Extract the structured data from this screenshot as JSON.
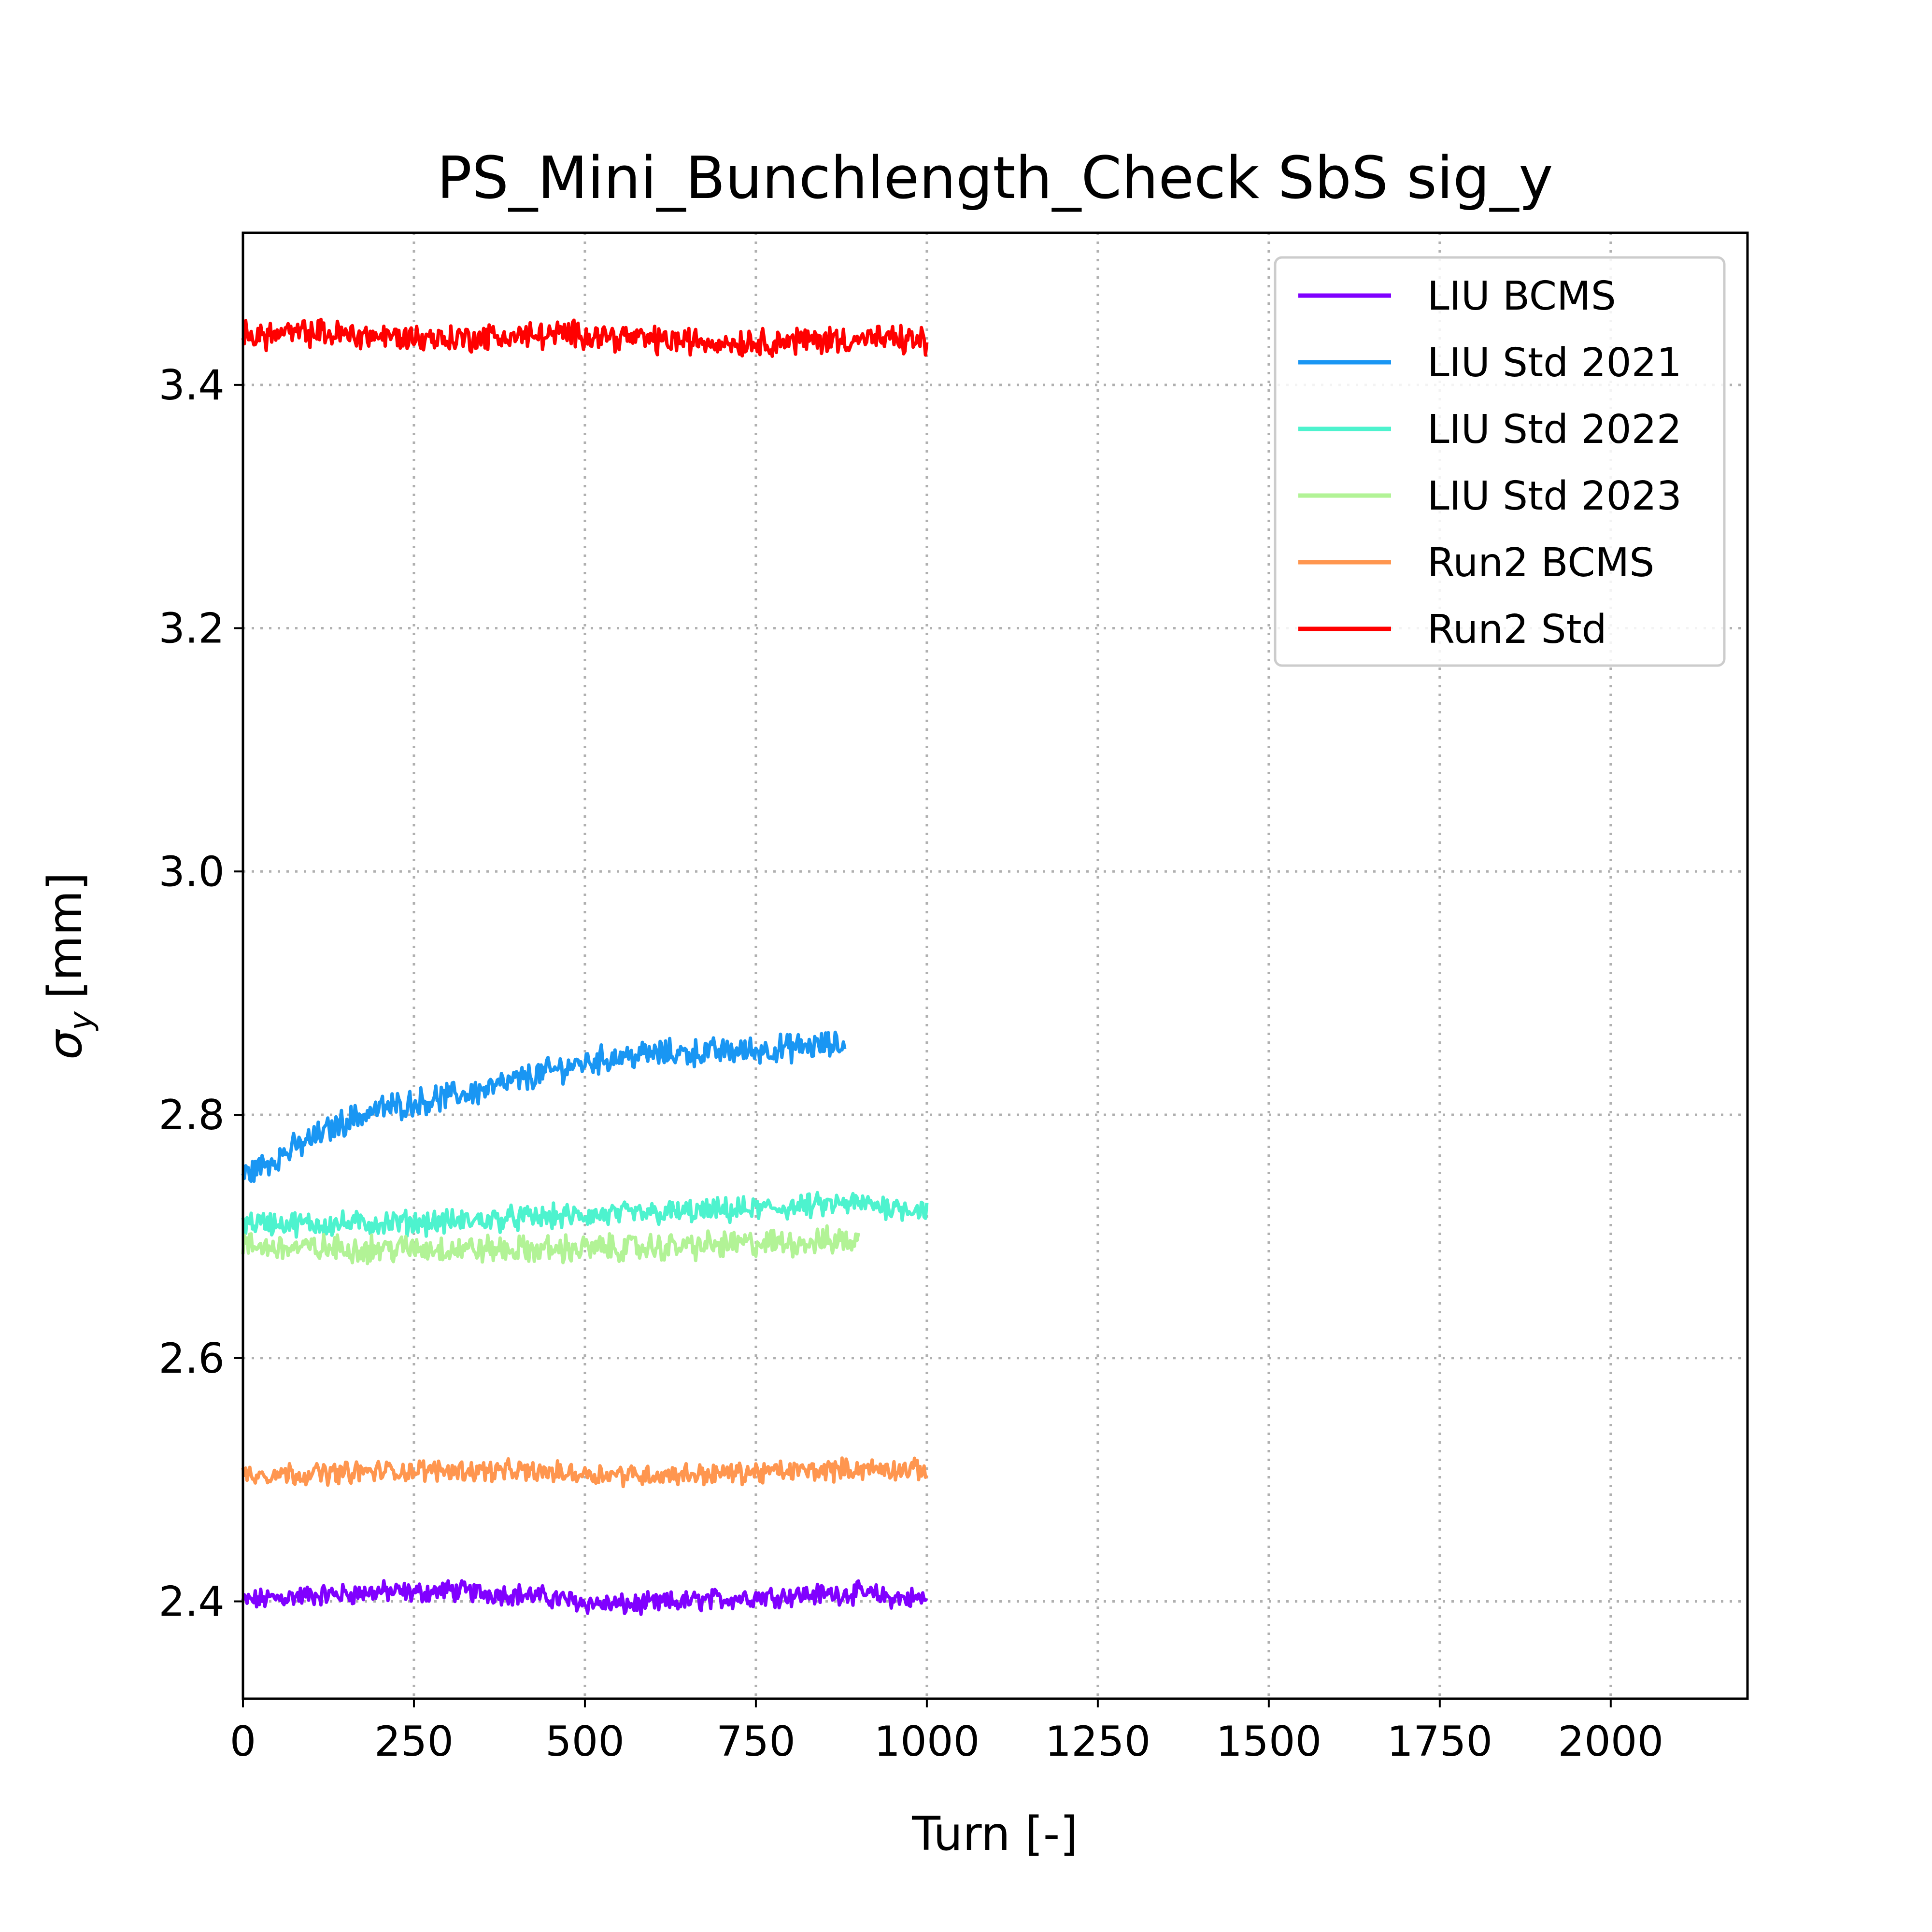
{
  "chart_data": {
    "type": "line",
    "title": "PS_Mini_Bunchlength_Check SbS sig_y",
    "xlabel": "Turn [-]",
    "ylabel_symbol": "σ",
    "ylabel_subscript": "y",
    "ylabel_unit": "[mm]",
    "xlim": [
      0,
      2200
    ],
    "ylim": [
      2.32,
      3.525
    ],
    "xticks": [
      0,
      250,
      500,
      750,
      1000,
      1250,
      1500,
      1750,
      2000
    ],
    "xtick_labels": [
      "0",
      "250",
      "500",
      "750",
      "1000",
      "1250",
      "1500",
      "1750",
      "2000"
    ],
    "yticks": [
      2.4,
      2.6,
      2.8,
      3.0,
      3.2,
      3.4
    ],
    "ytick_labels": [
      "2.4",
      "2.6",
      "2.8",
      "3.0",
      "3.2",
      "3.4"
    ],
    "grid": true,
    "grid_style": "dotted",
    "legend_position": "top-right",
    "series": [
      {
        "name": "LIU BCMS",
        "color": "#8000ff",
        "x": [
          0,
          50,
          100,
          150,
          200,
          250,
          300,
          350,
          400,
          450,
          500,
          550,
          600,
          650,
          700,
          750,
          800,
          850,
          900,
          950,
          1000
        ],
        "y": [
          2.4,
          2.403,
          2.405,
          2.406,
          2.408,
          2.407,
          2.409,
          2.407,
          2.406,
          2.403,
          2.399,
          2.397,
          2.398,
          2.4,
          2.402,
          2.404,
          2.405,
          2.406,
          2.407,
          2.403,
          2.402
        ],
        "noise": 0.007
      },
      {
        "name": "LIU Std 2021",
        "color": "#1996f3",
        "x": [
          0,
          50,
          100,
          150,
          200,
          250,
          300,
          350,
          400,
          450,
          500,
          550,
          600,
          650,
          700,
          750,
          800,
          850,
          880
        ],
        "y": [
          2.75,
          2.765,
          2.78,
          2.795,
          2.805,
          2.81,
          2.815,
          2.82,
          2.828,
          2.836,
          2.843,
          2.848,
          2.85,
          2.851,
          2.852,
          2.853,
          2.855,
          2.857,
          2.857
        ],
        "noise": 0.009
      },
      {
        "name": "LIU Std 2022",
        "color": "#4df3ce",
        "x": [
          0,
          100,
          200,
          300,
          400,
          500,
          600,
          700,
          800,
          900,
          1000
        ],
        "y": [
          2.712,
          2.71,
          2.711,
          2.712,
          2.715,
          2.717,
          2.719,
          2.721,
          2.724,
          2.727,
          2.722
        ],
        "noise": 0.008
      },
      {
        "name": "LIU Std 2023",
        "color": "#b2f396",
        "x": [
          0,
          100,
          200,
          300,
          400,
          500,
          600,
          700,
          800,
          900
        ],
        "y": [
          2.692,
          2.69,
          2.69,
          2.69,
          2.689,
          2.69,
          2.691,
          2.693,
          2.695,
          2.697
        ],
        "noise": 0.009
      },
      {
        "name": "Run2 BCMS",
        "color": "#ff964f",
        "x": [
          0,
          100,
          200,
          300,
          400,
          500,
          600,
          700,
          800,
          900,
          1000
        ],
        "y": [
          2.505,
          2.505,
          2.507,
          2.508,
          2.507,
          2.505,
          2.504,
          2.505,
          2.507,
          2.509,
          2.508
        ],
        "noise": 0.007
      },
      {
        "name": "Run2 Std",
        "color": "#ff0000",
        "x": [
          0,
          100,
          200,
          300,
          400,
          500,
          600,
          700,
          800,
          900,
          1000
        ],
        "y": [
          3.44,
          3.443,
          3.44,
          3.438,
          3.44,
          3.442,
          3.437,
          3.435,
          3.436,
          3.438,
          3.436
        ],
        "noise": 0.009
      }
    ]
  }
}
